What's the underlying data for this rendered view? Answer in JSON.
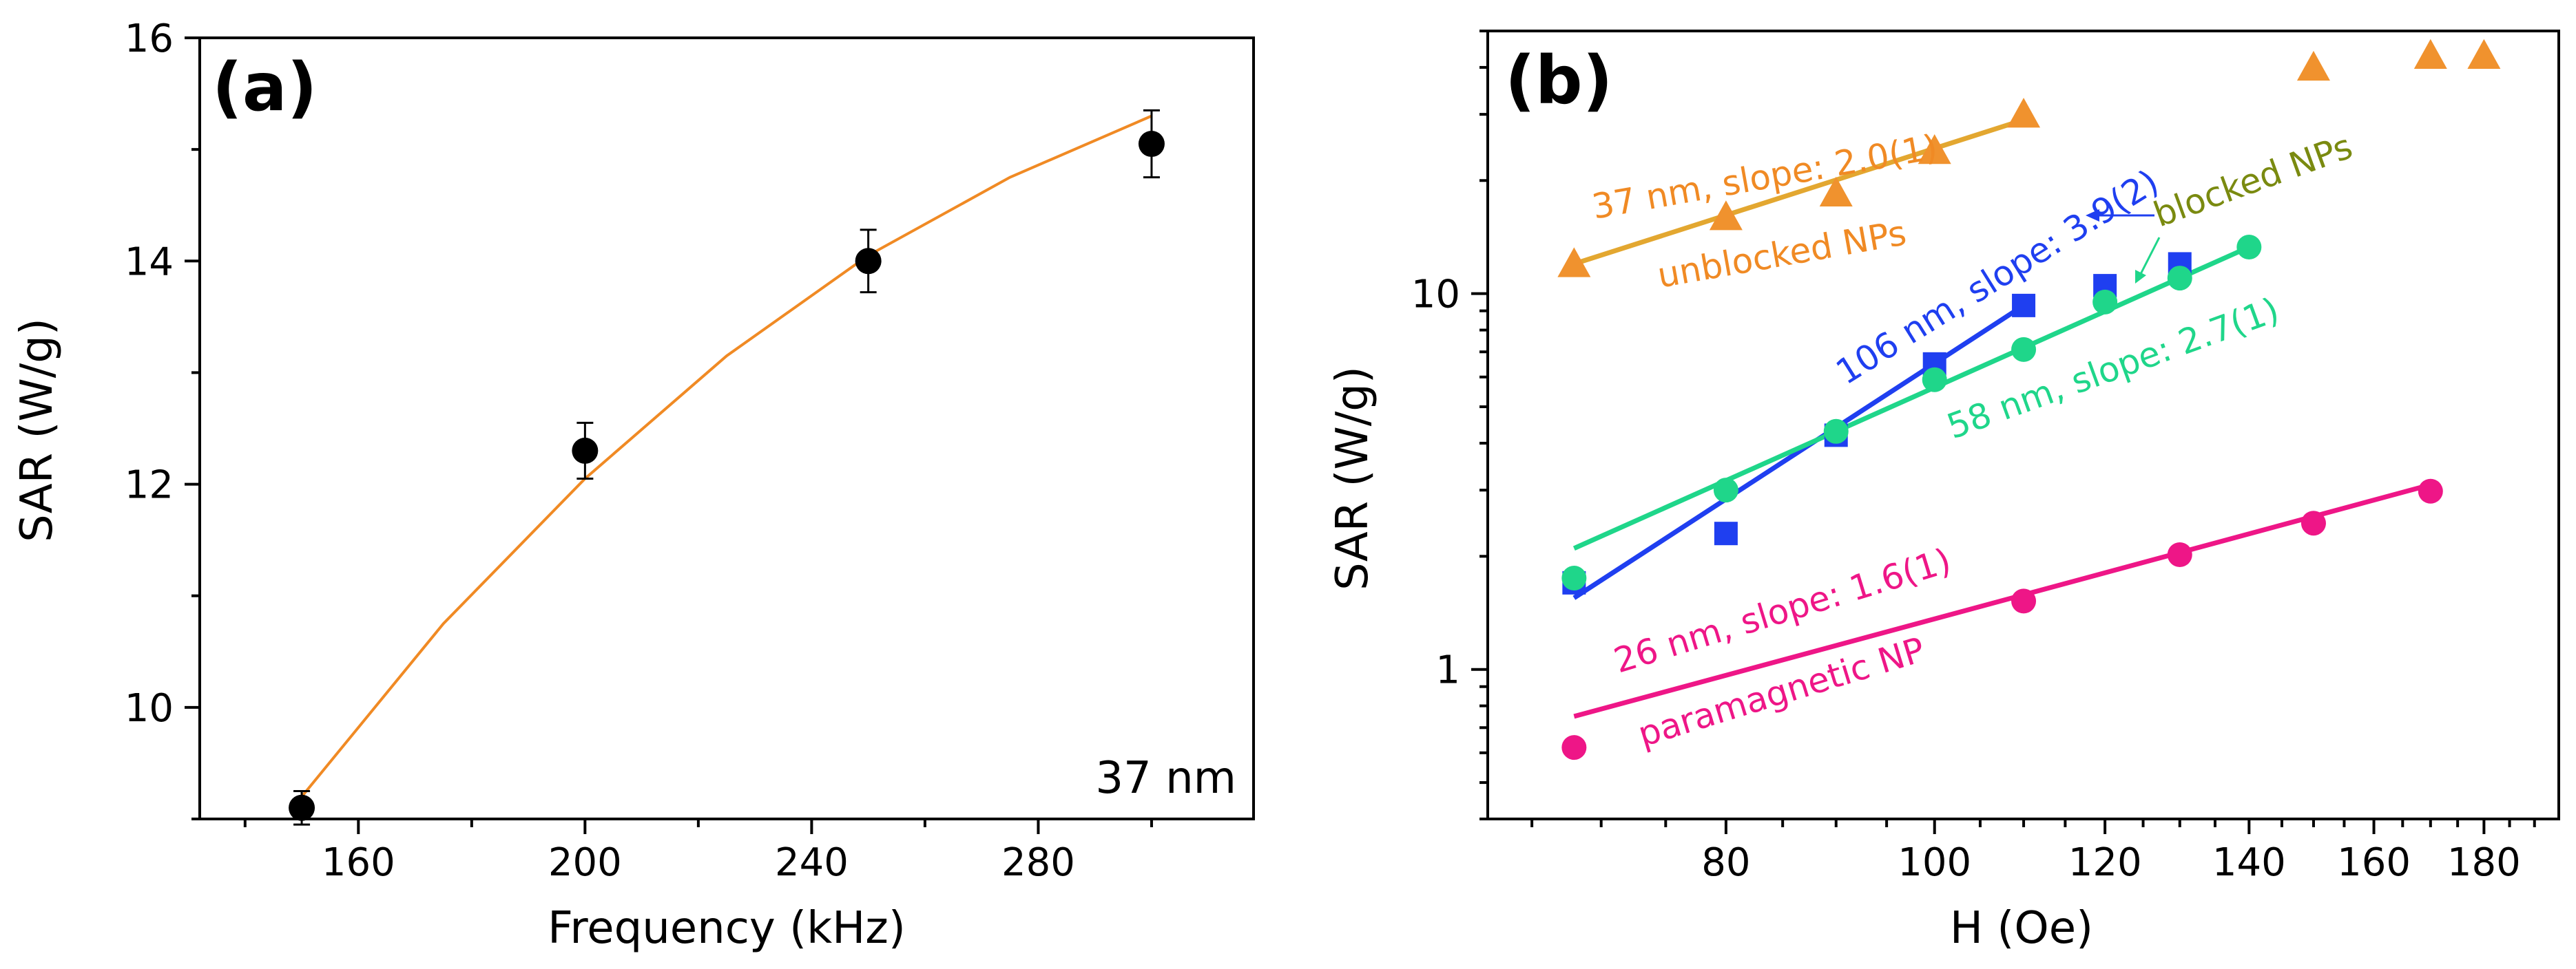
{
  "chart_data": [
    {
      "type": "scatter",
      "panel_label": "(a)",
      "xlabel": "Frequency (kHz)",
      "ylabel": "SAR (W/g)",
      "xlim": [
        132,
        318
      ],
      "ylim": [
        9,
        16
      ],
      "x_ticks": [
        160,
        200,
        240,
        280
      ],
      "y_ticks": [
        10,
        12,
        14,
        16
      ],
      "annotation": "37 nm",
      "series": [
        {
          "name": "37 nm",
          "color": "#000000",
          "marker": "circle",
          "x": [
            150,
            200,
            250,
            300
          ],
          "y": [
            9.1,
            12.3,
            14.0,
            15.05
          ],
          "yerr": [
            0.15,
            0.25,
            0.28,
            0.3
          ]
        }
      ],
      "fit": {
        "color": "#f08a24",
        "x": [
          150,
          175,
          200,
          225,
          250,
          275,
          300
        ],
        "y": [
          9.2,
          10.75,
          12.05,
          13.15,
          14.05,
          14.75,
          15.3
        ]
      }
    },
    {
      "type": "scatter",
      "panel_label": "(b)",
      "xlabel": "H (Oe)",
      "ylabel": "SAR (W/g)",
      "xscale": "log",
      "yscale": "log",
      "xlim": [
        62,
        195
      ],
      "ylim": [
        0.4,
        50
      ],
      "x_ticks": [
        80,
        100,
        120,
        140,
        160,
        180
      ],
      "y_ticks": [
        1,
        10
      ],
      "series": [
        {
          "name": "37 nm",
          "marker": "triangle",
          "color": "#f0922e",
          "x": [
            68,
            80,
            90,
            100,
            110,
            150,
            170,
            180
          ],
          "y": [
            12,
            16,
            18.5,
            24,
            30,
            40,
            43,
            43
          ]
        },
        {
          "name": "106 nm",
          "marker": "square",
          "color": "#1f3ff0",
          "x": [
            68,
            80,
            90,
            100,
            110,
            120,
            130
          ],
          "y": [
            1.7,
            2.3,
            4.2,
            6.5,
            9.3,
            10.5,
            12
          ]
        },
        {
          "name": "58 nm",
          "marker": "circle",
          "color": "#1fd68a",
          "x": [
            68,
            80,
            90,
            100,
            110,
            120,
            130,
            140
          ],
          "y": [
            1.75,
            3.0,
            4.3,
            5.9,
            7.1,
            9.5,
            11.0,
            13.3
          ]
        },
        {
          "name": "26 nm",
          "marker": "circle",
          "color": "#ee1687",
          "x": [
            68,
            110,
            130,
            150,
            170
          ],
          "y": [
            0.62,
            1.52,
            2.02,
            2.45,
            2.98
          ]
        }
      ],
      "fits": [
        {
          "name": "37 nm fit",
          "color": "#e3a730",
          "x": [
            68,
            110
          ],
          "y": [
            12,
            29
          ]
        },
        {
          "name": "106 nm fit",
          "color": "#1f3ff0",
          "x": [
            68,
            110
          ],
          "y": [
            1.55,
            9.3
          ]
        },
        {
          "name": "58 nm fit",
          "color": "#1fd68a",
          "x": [
            68,
            140
          ],
          "y": [
            2.1,
            13.3
          ]
        },
        {
          "name": "26 nm fit",
          "color": "#ee1687",
          "x": [
            68,
            170
          ],
          "y": [
            0.75,
            3.1
          ]
        }
      ],
      "annotations": [
        {
          "text": "37 nm, slope: 2.0(1)",
          "color": "#f08a24"
        },
        {
          "text": "unblocked NPs",
          "color": "#f08a24"
        },
        {
          "text": "106 nm, slope: 3.9(2)",
          "color": "#1f3ff0"
        },
        {
          "text": "blocked NPs",
          "color": "#7a8a10"
        },
        {
          "text": "58 nm, slope: 2.7(1)",
          "color": "#1fd68a"
        },
        {
          "text": "26 nm, slope: 1.6(1)",
          "color": "#ee1687"
        },
        {
          "text": "paramagnetic NP",
          "color": "#ee1687"
        }
      ]
    }
  ]
}
